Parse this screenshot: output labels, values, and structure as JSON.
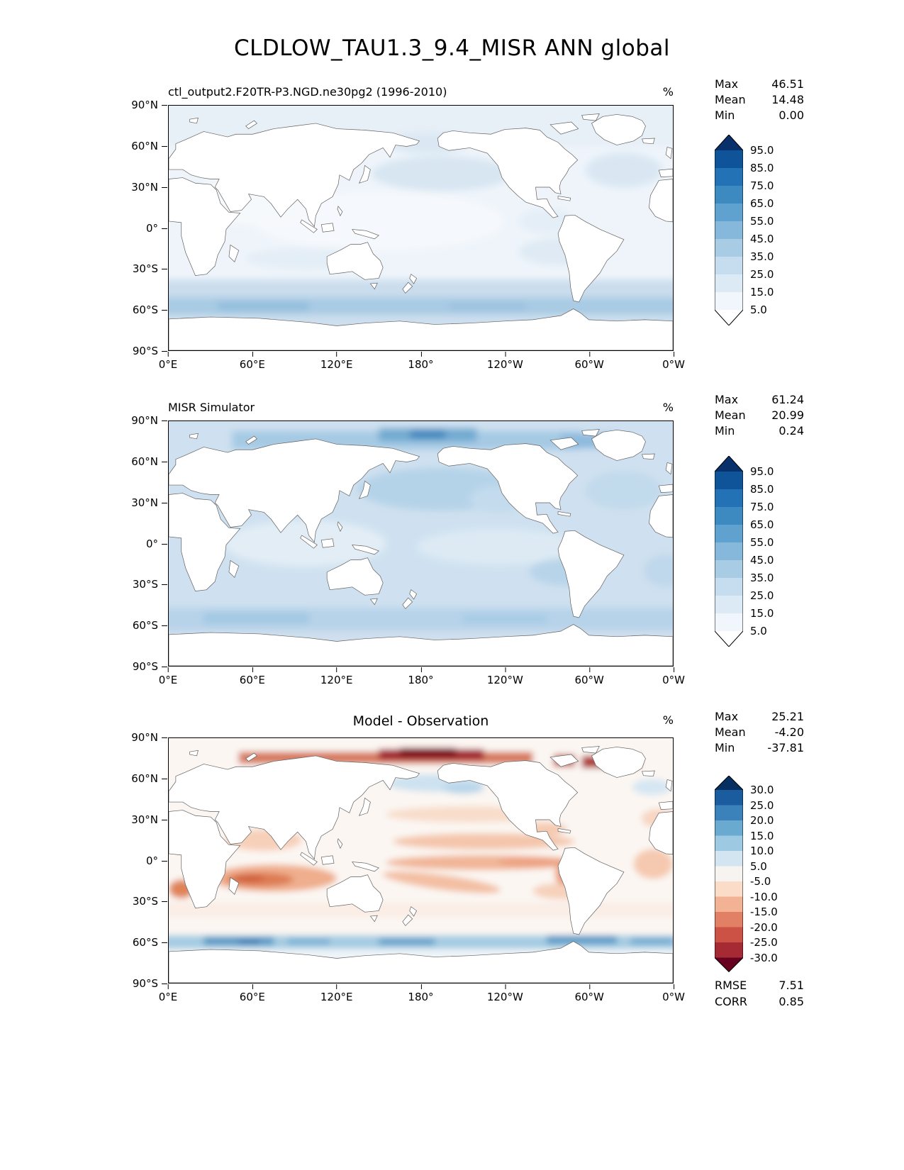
{
  "figure_title": "CLDLOW_TAU1.3_9.4_MISR ANN global",
  "axes": {
    "y_ticks": [
      "90°N",
      "60°N",
      "30°N",
      "0°",
      "30°S",
      "60°S",
      "90°S"
    ],
    "x_ticks": [
      "0°E",
      "60°E",
      "120°E",
      "180°",
      "120°W",
      "60°W",
      "0°W"
    ]
  },
  "panels": [
    {
      "title": "ctl_output2.F20TR-P3.NGD.ne30pg2 (1996-2010)",
      "unit": "%",
      "stats": {
        "rows": [
          {
            "label": "Max",
            "value": "46.51"
          },
          {
            "label": "Mean",
            "value": "14.48"
          },
          {
            "label": "Min",
            "value": "0.00"
          }
        ]
      },
      "colorbar": {
        "tick_labels": [
          "95.0",
          "85.0",
          "75.0",
          "65.0",
          "55.0",
          "45.0",
          "35.0",
          "25.0",
          "15.0",
          "5.0"
        ],
        "colors_top_to_bottom": [
          "#08306b",
          "#0f5499",
          "#2272b5",
          "#3d8ac1",
          "#5fa2d0",
          "#85b8da",
          "#a8cce4",
          "#c6dcef",
          "#dceaf5",
          "#f0f6fc",
          "#ffffff"
        ]
      }
    },
    {
      "title": "MISR Simulator",
      "unit": "%",
      "stats": {
        "rows": [
          {
            "label": "Max",
            "value": "61.24"
          },
          {
            "label": "Mean",
            "value": "20.99"
          },
          {
            "label": "Min",
            "value": "0.24"
          }
        ]
      },
      "colorbar": {
        "tick_labels": [
          "95.0",
          "85.0",
          "75.0",
          "65.0",
          "55.0",
          "45.0",
          "35.0",
          "25.0",
          "15.0",
          "5.0"
        ],
        "colors_top_to_bottom": [
          "#08306b",
          "#0f5499",
          "#2272b5",
          "#3d8ac1",
          "#5fa2d0",
          "#85b8da",
          "#a8cce4",
          "#c6dcef",
          "#dceaf5",
          "#f0f6fc",
          "#ffffff"
        ]
      }
    },
    {
      "title": "Model - Observation",
      "unit": "%",
      "stats": {
        "rows": [
          {
            "label": "Max",
            "value": "25.21"
          },
          {
            "label": "Mean",
            "value": "-4.20"
          },
          {
            "label": "Min",
            "value": "-37.81"
          }
        ]
      },
      "colorbar": {
        "tick_labels": [
          "30.0",
          "25.0",
          "20.0",
          "15.0",
          "10.0",
          "5.0",
          "-5.0",
          "-10.0",
          "-15.0",
          "-20.0",
          "-25.0",
          "-30.0"
        ],
        "colors_top_to_bottom": [
          "#053061",
          "#1a5c9e",
          "#3c82ba",
          "#6aaad0",
          "#9ec9e2",
          "#d3e5f0",
          "#f7f3f0",
          "#fadcc8",
          "#f2b293",
          "#e18065",
          "#cc5246",
          "#a62a34",
          "#67001f"
        ]
      },
      "extra": {
        "rows": [
          {
            "label": "RMSE",
            "value": "7.51"
          },
          {
            "label": "CORR",
            "value": "0.85"
          }
        ]
      }
    }
  ],
  "chart_data": [
    {
      "type": "heatmap",
      "title": "ctl_output2.F20TR-P3.NGD.ne30pg2 (1996-2010)",
      "variable": "CLDLOW_TAU1.3_9.4_MISR",
      "season": "ANN",
      "region": "global",
      "units": "%",
      "stats": {
        "max": 46.51,
        "mean": 14.48,
        "min": 0.0
      },
      "contour_levels": [
        5,
        15,
        25,
        35,
        45,
        55,
        65,
        75,
        85,
        95
      ],
      "colormap": "white-to-dark-blue sequential with triangular over/under extensions",
      "x_axis": {
        "ticks": [
          "0°E",
          "60°E",
          "120°E",
          "180°",
          "120°W",
          "60°W",
          "0°W"
        ]
      },
      "y_axis": {
        "ticks": [
          "90°N",
          "60°N",
          "30°N",
          "0°",
          "30°S",
          "60°S",
          "90°S"
        ]
      },
      "notes": "Model low-cloud fraction: mostly 5-25% over oceans, pale over land and tropics, maximum band ~35-45% in the Southern Ocean near 55-60°S."
    },
    {
      "type": "heatmap",
      "title": "MISR Simulator",
      "units": "%",
      "stats": {
        "max": 61.24,
        "mean": 20.99,
        "min": 0.24
      },
      "contour_levels": [
        5,
        15,
        25,
        35,
        45,
        55,
        65,
        75,
        85,
        95
      ],
      "colormap": "white-to-dark-blue sequential with triangular over/under extensions",
      "notes": "Observed MISR low cloud: widespread 15-35% over oceans, strongest values along the Arctic coast (~75°N) and in the Southern Ocean band; land mostly white."
    },
    {
      "type": "heatmap",
      "title": "Model - Observation",
      "units": "%",
      "stats": {
        "max": 25.21,
        "mean": -4.2,
        "min": -37.81,
        "rmse": 7.51,
        "corr": 0.85
      },
      "contour_levels": [
        -30,
        -25,
        -20,
        -15,
        -10,
        -5,
        5,
        10,
        15,
        20,
        25,
        30
      ],
      "colormap": "diverging, red = negative bias, white = near zero, blue = positive bias",
      "notes": "Negative (red) bias over tropical Indian and Pacific oceans, strong dark-red negative bias along Arctic coastline; positive (blue) band near 55-60°S."
    }
  ]
}
